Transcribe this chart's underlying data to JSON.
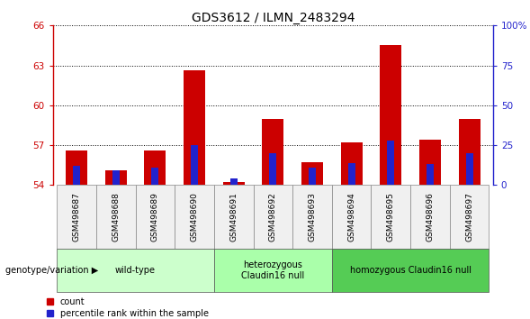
{
  "title": "GDS3612 / ILMN_2483294",
  "samples": [
    "GSM498687",
    "GSM498688",
    "GSM498689",
    "GSM498690",
    "GSM498691",
    "GSM498692",
    "GSM498693",
    "GSM498694",
    "GSM498695",
    "GSM498696",
    "GSM498697"
  ],
  "red_values": [
    56.6,
    55.1,
    56.6,
    62.6,
    54.2,
    59.0,
    55.7,
    57.2,
    64.5,
    57.4,
    59.0
  ],
  "blue_values": [
    12,
    9,
    11,
    25,
    4,
    20,
    11,
    14,
    28,
    13,
    20
  ],
  "base": 54.0,
  "ylim_left": [
    54,
    66
  ],
  "ylim_right": [
    0,
    100
  ],
  "yticks_left": [
    54,
    57,
    60,
    63,
    66
  ],
  "yticks_right": [
    0,
    25,
    50,
    75,
    100
  ],
  "group_spans": [
    {
      "label": "wild-type",
      "start": 0,
      "end": 3,
      "color": "#ccffcc"
    },
    {
      "label": "heterozygous\nClaudin16 null",
      "start": 4,
      "end": 6,
      "color": "#aaffaa"
    },
    {
      "label": "homozygous Claudin16 null",
      "start": 7,
      "end": 10,
      "color": "#55cc55"
    }
  ],
  "group_label": "genotype/variation",
  "legend_items": [
    {
      "label": "count",
      "color": "#cc0000"
    },
    {
      "label": "percentile rank within the sample",
      "color": "#2222cc"
    }
  ],
  "red_bar_width": 0.55,
  "blue_bar_width": 0.18,
  "red_color": "#cc0000",
  "blue_color": "#2222cc",
  "left_axis_color": "#cc0000",
  "right_axis_color": "#2222cc",
  "title_fontsize": 10,
  "tick_fontsize": 7.5,
  "sample_fontsize": 6.5,
  "group_fontsize": 7,
  "legend_fontsize": 7,
  "bg_color": "#f0f0f0"
}
